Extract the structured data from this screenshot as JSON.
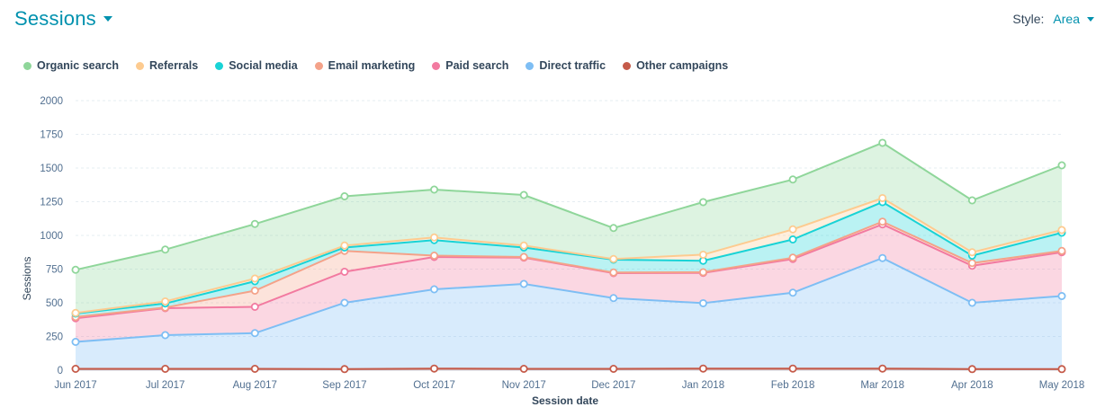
{
  "header": {
    "title": "Sessions"
  },
  "style_control": {
    "label": "Style:",
    "value": "Area"
  },
  "colors": {
    "accent": "#0091ae",
    "organic": "#8fd69a",
    "referrals": "#fdcb90",
    "social": "#19d3d6",
    "email": "#f4a289",
    "paid": "#f27aa0",
    "direct": "#7ebef4",
    "other": "#c55b4a"
  },
  "legend": [
    {
      "label": "Organic search",
      "color": "#8fd69a"
    },
    {
      "label": "Referrals",
      "color": "#fdcb90"
    },
    {
      "label": "Social media",
      "color": "#19d3d6"
    },
    {
      "label": "Email marketing",
      "color": "#f4a289"
    },
    {
      "label": "Paid search",
      "color": "#f27aa0"
    },
    {
      "label": "Direct traffic",
      "color": "#7ebef4"
    },
    {
      "label": "Other campaigns",
      "color": "#c55b4a"
    }
  ],
  "chart_data": {
    "type": "area",
    "stacked": true,
    "xlabel": "Session date",
    "ylabel": "Sessions",
    "ylim": [
      0,
      2000
    ],
    "yticks": [
      0,
      250,
      500,
      750,
      1000,
      1250,
      1500,
      1750,
      2000
    ],
    "grid": true,
    "legend_position": "top-left",
    "categories": [
      "Jun 2017",
      "Jul 2017",
      "Aug 2017",
      "Sep 2017",
      "Oct 2017",
      "Nov 2017",
      "Dec 2017",
      "Jan 2018",
      "Feb 2018",
      "Mar 2018",
      "Apr 2018",
      "May 2018"
    ],
    "series": [
      {
        "name": "Other campaigns",
        "color": "#c55b4a",
        "values": [
          10,
          10,
          10,
          8,
          12,
          10,
          10,
          12,
          12,
          12,
          8,
          8
        ]
      },
      {
        "name": "Direct traffic",
        "color": "#7ebef4",
        "values": [
          200,
          250,
          265,
          492,
          588,
          630,
          525,
          485,
          563,
          820,
          492,
          542
        ]
      },
      {
        "name": "Paid search",
        "color": "#f27aa0",
        "values": [
          175,
          200,
          195,
          230,
          240,
          195,
          185,
          225,
          250,
          250,
          275,
          325
        ]
      },
      {
        "name": "Email marketing",
        "color": "#f4a289",
        "values": [
          10,
          5,
          120,
          155,
          10,
          5,
          5,
          5,
          10,
          20,
          20,
          10
        ]
      },
      {
        "name": "Social media",
        "color": "#19d3d6",
        "values": [
          25,
          30,
          70,
          25,
          115,
          70,
          95,
          85,
          135,
          145,
          55,
          135
        ]
      },
      {
        "name": "Referrals",
        "color": "#fdcb90",
        "values": [
          5,
          15,
          20,
          15,
          20,
          15,
          5,
          45,
          75,
          30,
          25,
          20
        ]
      },
      {
        "name": "Organic search",
        "color": "#8fd69a",
        "values": [
          320,
          385,
          405,
          365,
          355,
          375,
          230,
          390,
          370,
          410,
          385,
          480
        ]
      }
    ]
  }
}
